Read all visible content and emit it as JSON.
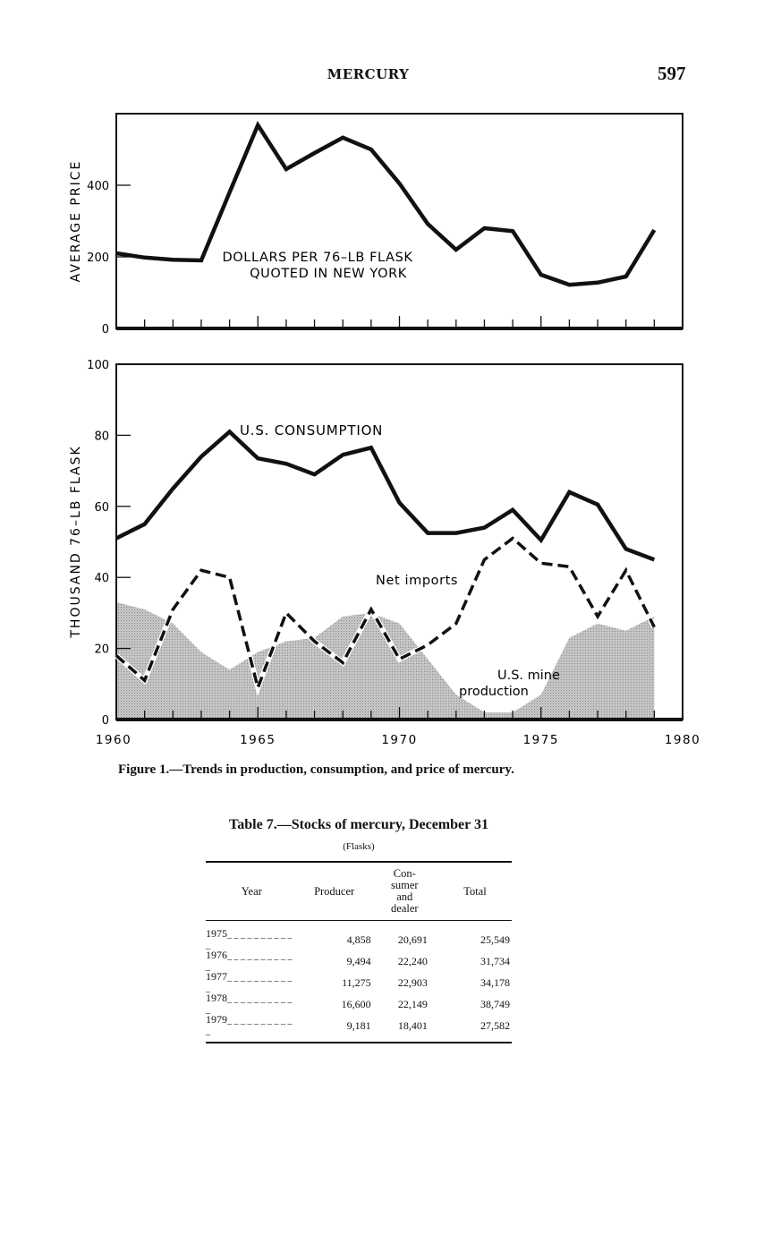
{
  "header": {
    "running_head": "MERCURY",
    "page_number": "597"
  },
  "figure": {
    "caption": "Figure 1.—Trends in production, consumption, and price of mercury."
  },
  "chart_data": [
    {
      "type": "line",
      "ylabel": "AVERAGE PRICE",
      "xlim": [
        1960,
        1980
      ],
      "ylim": [
        0,
        600
      ],
      "yticks": [
        "0",
        "200",
        "400"
      ],
      "annotation": [
        "DOLLARS PER 76–LB FLASK",
        "QUOTED IN NEW YORK"
      ],
      "grid": false,
      "x": [
        1960,
        1961,
        1962,
        1963,
        1964,
        1965,
        1966,
        1967,
        1968,
        1969,
        1970,
        1971,
        1972,
        1973,
        1974,
        1975,
        1976,
        1977,
        1978,
        1979
      ],
      "series": [
        {
          "values": [
            210,
            198,
            192,
            190,
            380,
            568,
            445,
            490,
            533,
            500,
            405,
            292,
            220,
            280,
            272,
            150,
            122,
            128,
            145,
            275
          ]
        }
      ]
    },
    {
      "type": "line",
      "ylabel": "THOUSAND 76–LB FLASK",
      "xlim": [
        1960,
        1980
      ],
      "ylim": [
        0,
        100
      ],
      "yticks": [
        "0",
        "20",
        "40",
        "60",
        "80",
        "100"
      ],
      "xticks": [
        "1960",
        "1965",
        "1970",
        "1975",
        "1980"
      ],
      "grid": false,
      "x": [
        1960,
        1961,
        1962,
        1963,
        1964,
        1965,
        1966,
        1967,
        1968,
        1969,
        1970,
        1971,
        1972,
        1973,
        1974,
        1975,
        1976,
        1977,
        1978,
        1979
      ],
      "series": [
        {
          "name": "U.S. CONSUMPTION",
          "style": "solid",
          "values": [
            51,
            55,
            65,
            74,
            81,
            73.5,
            72,
            69,
            74.5,
            76.5,
            61,
            52.5,
            52.5,
            54,
            59,
            50.5,
            64,
            60.5,
            48,
            45
          ]
        },
        {
          "name": "Net imports",
          "style": "dashed",
          "values": [
            18,
            11,
            31,
            42,
            40,
            9,
            30,
            22,
            16,
            31,
            17,
            21,
            27,
            45,
            51,
            44,
            43,
            29,
            42,
            26
          ]
        },
        {
          "name": "U.S. mine production",
          "label_lines": [
            "U.S. mine",
            "production"
          ],
          "style": "area",
          "values": [
            33,
            31,
            27,
            19,
            14,
            19,
            22,
            23,
            29,
            30,
            27,
            17,
            7,
            2,
            2,
            7,
            23,
            27,
            25,
            29
          ]
        }
      ]
    }
  ],
  "table": {
    "title": "Table 7.—Stocks of mercury, December 31",
    "unit": "(Flasks)",
    "columns": [
      "Year",
      "Producer",
      "Con-\nsumer\nand\ndealer",
      "Total"
    ],
    "rows": [
      [
        "1975",
        "4,858",
        "20,691",
        "25,549"
      ],
      [
        "1976",
        "9,494",
        "22,240",
        "31,734"
      ],
      [
        "1977",
        "11,275",
        "22,903",
        "34,178"
      ],
      [
        "1978",
        "16,600",
        "22,149",
        "38,749"
      ],
      [
        "1979",
        "9,181",
        "18,401",
        "27,582"
      ]
    ]
  },
  "colors": {
    "ink": "#111111",
    "shade": "#b8b8b8",
    "paper": "#ffffff"
  }
}
